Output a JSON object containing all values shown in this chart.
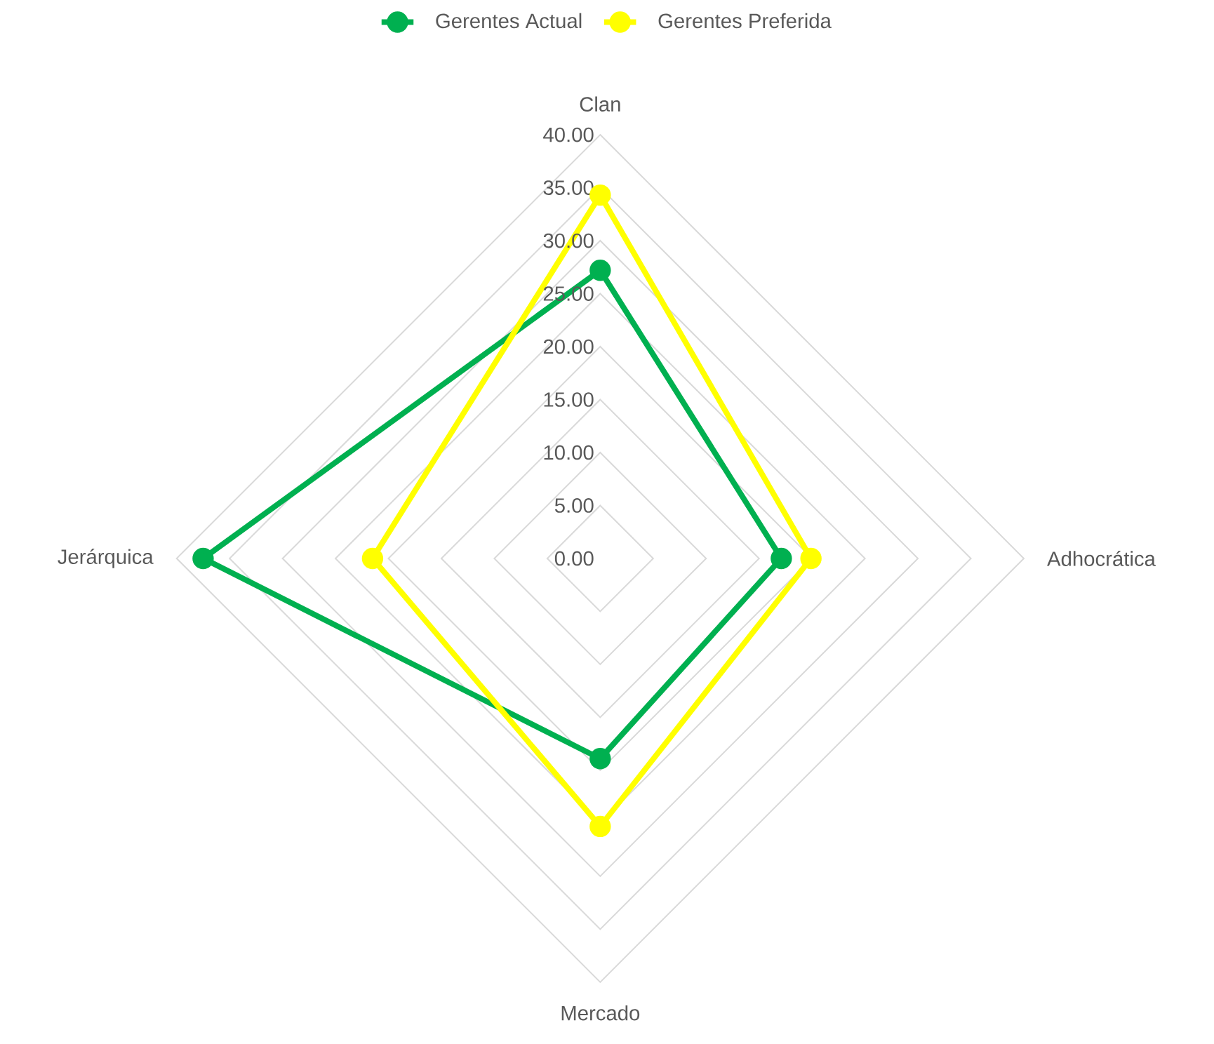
{
  "chart_data": {
    "type": "radar",
    "categories": [
      "Clan",
      "Adhocrática",
      "Mercado",
      "Jerárquica"
    ],
    "series": [
      {
        "name": "Gerentes Actual",
        "color": "#00b050",
        "values": [
          27.2,
          17.1,
          18.9,
          37.5
        ]
      },
      {
        "name": "Gerentes Preferida",
        "color": "#ffff00",
        "values": [
          34.3,
          19.9,
          25.3,
          21.5
        ]
      }
    ],
    "ylim": [
      0,
      40
    ],
    "yticks": [
      {
        "value": 0,
        "label": "0.00"
      },
      {
        "value": 5,
        "label": "5.00"
      },
      {
        "value": 10,
        "label": "10.00"
      },
      {
        "value": 15,
        "label": "15.00"
      },
      {
        "value": 20,
        "label": "20.00"
      },
      {
        "value": 25,
        "label": "25.00"
      },
      {
        "value": 30,
        "label": "30.00"
      },
      {
        "value": 35,
        "label": "35.00"
      },
      {
        "value": 40,
        "label": "40.00"
      }
    ],
    "grid": true,
    "legend": "top",
    "marker": "circle",
    "line_style": "solid"
  }
}
